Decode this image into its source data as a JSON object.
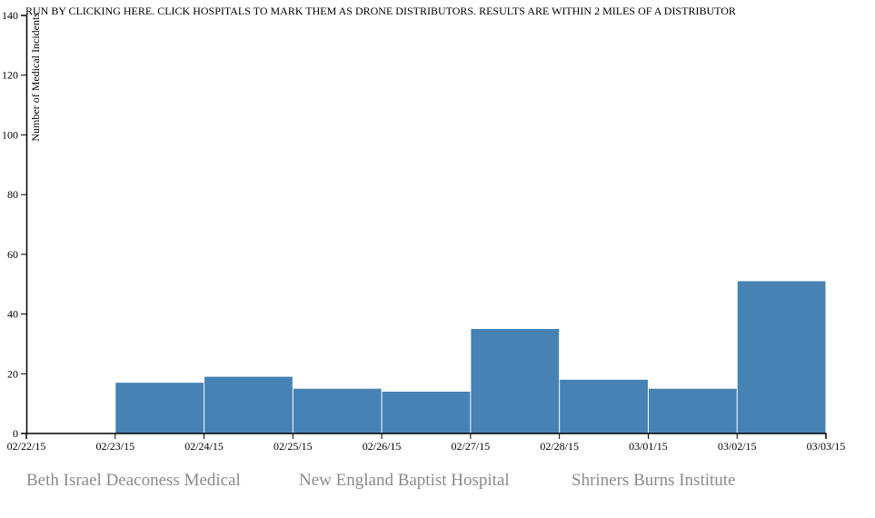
{
  "run_button": {
    "label": "RUN BY CLICKING HERE. CLICK HOSPITALS TO MARK THEM AS DRONE DISTRIBUTORS. RESULTS ARE WITHIN 2 MILES OF A DISTRIBUTOR"
  },
  "hospitals": [
    {
      "label": "Beth Israel Deaconess Medical"
    },
    {
      "label": "New England Baptist Hospital"
    },
    {
      "label": "Shriners Burns Institute"
    }
  ],
  "colors": {
    "bar": "#4682b4",
    "hospital_text": "#8a8a8a",
    "axis": "#000000"
  },
  "chart_data": {
    "type": "bar",
    "title": "",
    "xlabel": "",
    "ylabel": "Number of Medical Incidents",
    "x_ticks": [
      "02/22/15",
      "02/23/15",
      "02/24/15",
      "02/25/15",
      "02/26/15",
      "02/27/15",
      "02/28/15",
      "03/01/15",
      "03/02/15",
      "03/03/15"
    ],
    "y_ticks": [
      0,
      20,
      40,
      60,
      80,
      100,
      120,
      140
    ],
    "ylim": [
      0,
      140
    ],
    "grid": false,
    "bins": [
      {
        "start": "02/22/15",
        "end": "02/23/15",
        "value": 0
      },
      {
        "start": "02/23/15",
        "end": "02/24/15",
        "value": 17
      },
      {
        "start": "02/24/15",
        "end": "02/25/15",
        "value": 19
      },
      {
        "start": "02/25/15",
        "end": "02/26/15",
        "value": 15
      },
      {
        "start": "02/26/15",
        "end": "02/27/15",
        "value": 14
      },
      {
        "start": "02/27/15",
        "end": "02/28/15",
        "value": 35
      },
      {
        "start": "02/28/15",
        "end": "03/01/15",
        "value": 18
      },
      {
        "start": "03/01/15",
        "end": "03/02/15",
        "value": 15
      },
      {
        "start": "03/02/15",
        "end": "03/03/15",
        "value": 51
      }
    ]
  }
}
